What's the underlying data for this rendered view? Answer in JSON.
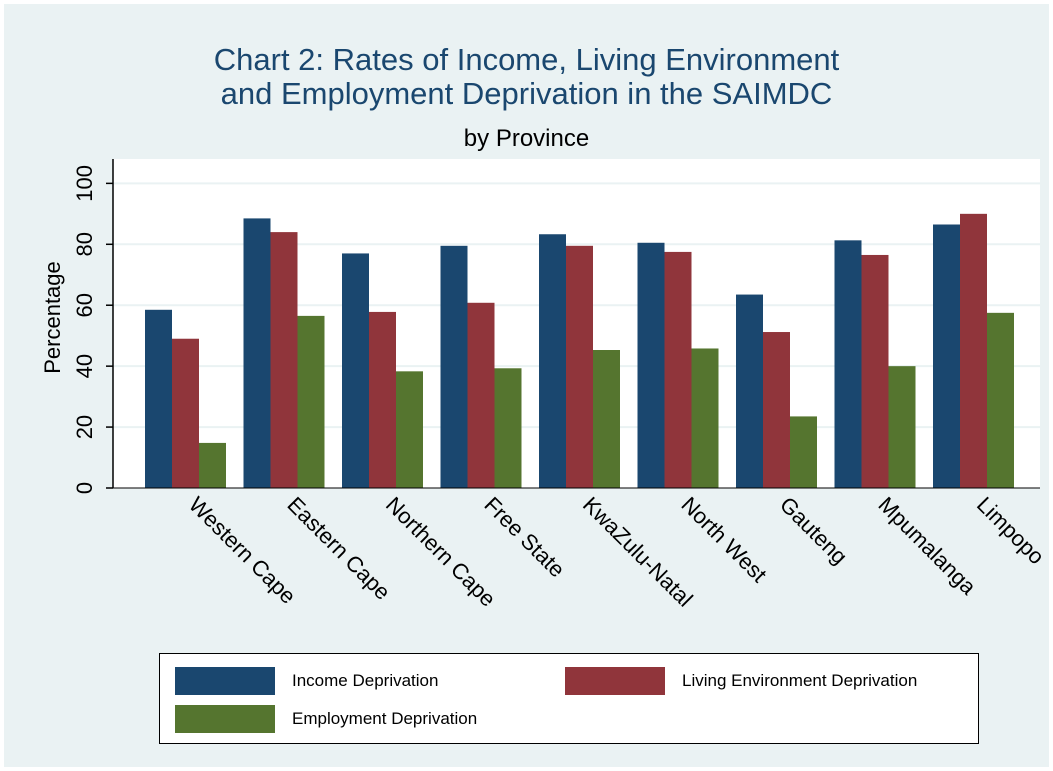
{
  "chart_data": {
    "type": "bar",
    "title": "Chart 2: Rates of Income, Living Environment",
    "title_line_2": "and Employment Deprivation in the SAIMDC",
    "subtitle": "by Province",
    "ylabel": "Percentage",
    "xlabel": "",
    "ylim": [
      0,
      108
    ],
    "yticks": [
      0,
      20,
      40,
      60,
      80,
      100
    ],
    "grid": true,
    "legend_position": "bottom",
    "categories": [
      "Western Cape",
      "Eastern Cape",
      "Northern Cape",
      "Free State",
      "KwaZulu-Natal",
      "North West",
      "Gauteng",
      "Mpumalanga",
      "Limpopo"
    ],
    "series": [
      {
        "name": "Income Deprivation",
        "color": "#1a476f",
        "values": [
          58.5,
          88.5,
          77,
          79.5,
          83.3,
          80.5,
          63.5,
          81.3,
          86.5
        ]
      },
      {
        "name": "Living Environment Deprivation",
        "color": "#90353b",
        "values": [
          49,
          84,
          57.8,
          60.8,
          79.5,
          77.5,
          51.2,
          76.5,
          90
        ]
      },
      {
        "name": "Employment Deprivation",
        "color": "#55752f",
        "values": [
          14.8,
          56.5,
          38.3,
          39.3,
          45.3,
          45.8,
          23.5,
          40,
          57.5
        ]
      }
    ]
  }
}
